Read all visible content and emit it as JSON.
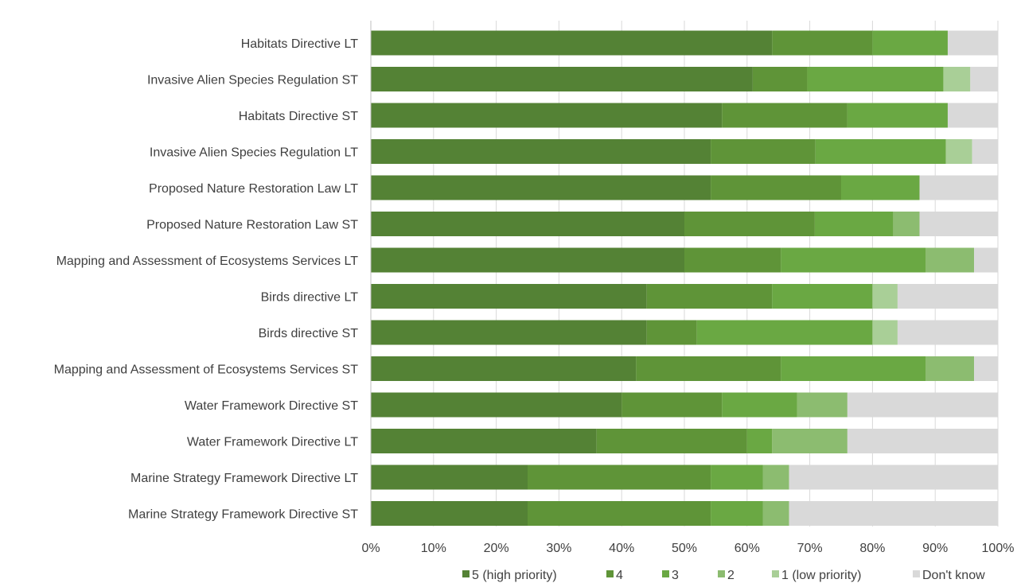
{
  "chart_data": {
    "type": "bar",
    "orientation": "horizontal",
    "stacked": true,
    "title": "",
    "xlabel": "",
    "ylabel": "",
    "xlim": [
      0,
      100
    ],
    "x_ticks": [
      "0%",
      "10%",
      "20%",
      "30%",
      "40%",
      "50%",
      "60%",
      "70%",
      "80%",
      "90%",
      "100%"
    ],
    "grid": "vertical",
    "legend_position": "bottom",
    "categories": [
      "Habitats Directive LT",
      "Invasive Alien Species Regulation ST",
      "Habitats Directive ST",
      "Invasive Alien Species Regulation LT",
      "Proposed Nature Restoration Law LT",
      "Proposed Nature Restoration Law ST",
      "Mapping and Assessment of Ecosystems Services LT",
      "Birds directive LT",
      "Birds directive ST",
      "Mapping and Assessment of Ecosystems Services ST",
      "Water Framework Directive ST",
      "Water Framework Directive LT",
      "Marine Strategy Framework Directive LT",
      "Marine Strategy Framework Directive ST"
    ],
    "series": [
      {
        "name": "5 (high priority)",
        "color": "#548235",
        "values": [
          64,
          60.9,
          56,
          54.2,
          54.2,
          50,
          50,
          44,
          44,
          42.3,
          40,
          36,
          25,
          25
        ]
      },
      {
        "name": "4",
        "color": "#5f9438",
        "values": [
          16,
          8.7,
          20,
          16.7,
          20.8,
          20.8,
          15.4,
          20,
          8,
          23.1,
          16,
          24,
          29.2,
          29.2
        ]
      },
      {
        "name": "3",
        "color": "#6aa843",
        "values": [
          12,
          21.7,
          16,
          20.8,
          12.5,
          12.5,
          23.1,
          16,
          28,
          23.1,
          12,
          4,
          8.3,
          8.3
        ]
      },
      {
        "name": "2",
        "color": "#8cbc70",
        "values": [
          0,
          0,
          0,
          0,
          0,
          4.2,
          7.7,
          0,
          0,
          7.7,
          8,
          12,
          4.2,
          4.2
        ]
      },
      {
        "name": "1 (low priority)",
        "color": "#a9cf97",
        "values": [
          0,
          4.3,
          0,
          4.2,
          0,
          0,
          0,
          4,
          4,
          0,
          0,
          0,
          0,
          0
        ]
      },
      {
        "name": "Don't know",
        "color": "#d9d9d9",
        "values": [
          8,
          4.4,
          8,
          4.1,
          12.5,
          12.5,
          3.8,
          16,
          16,
          3.8,
          24,
          24,
          33.3,
          33.3
        ]
      }
    ]
  }
}
